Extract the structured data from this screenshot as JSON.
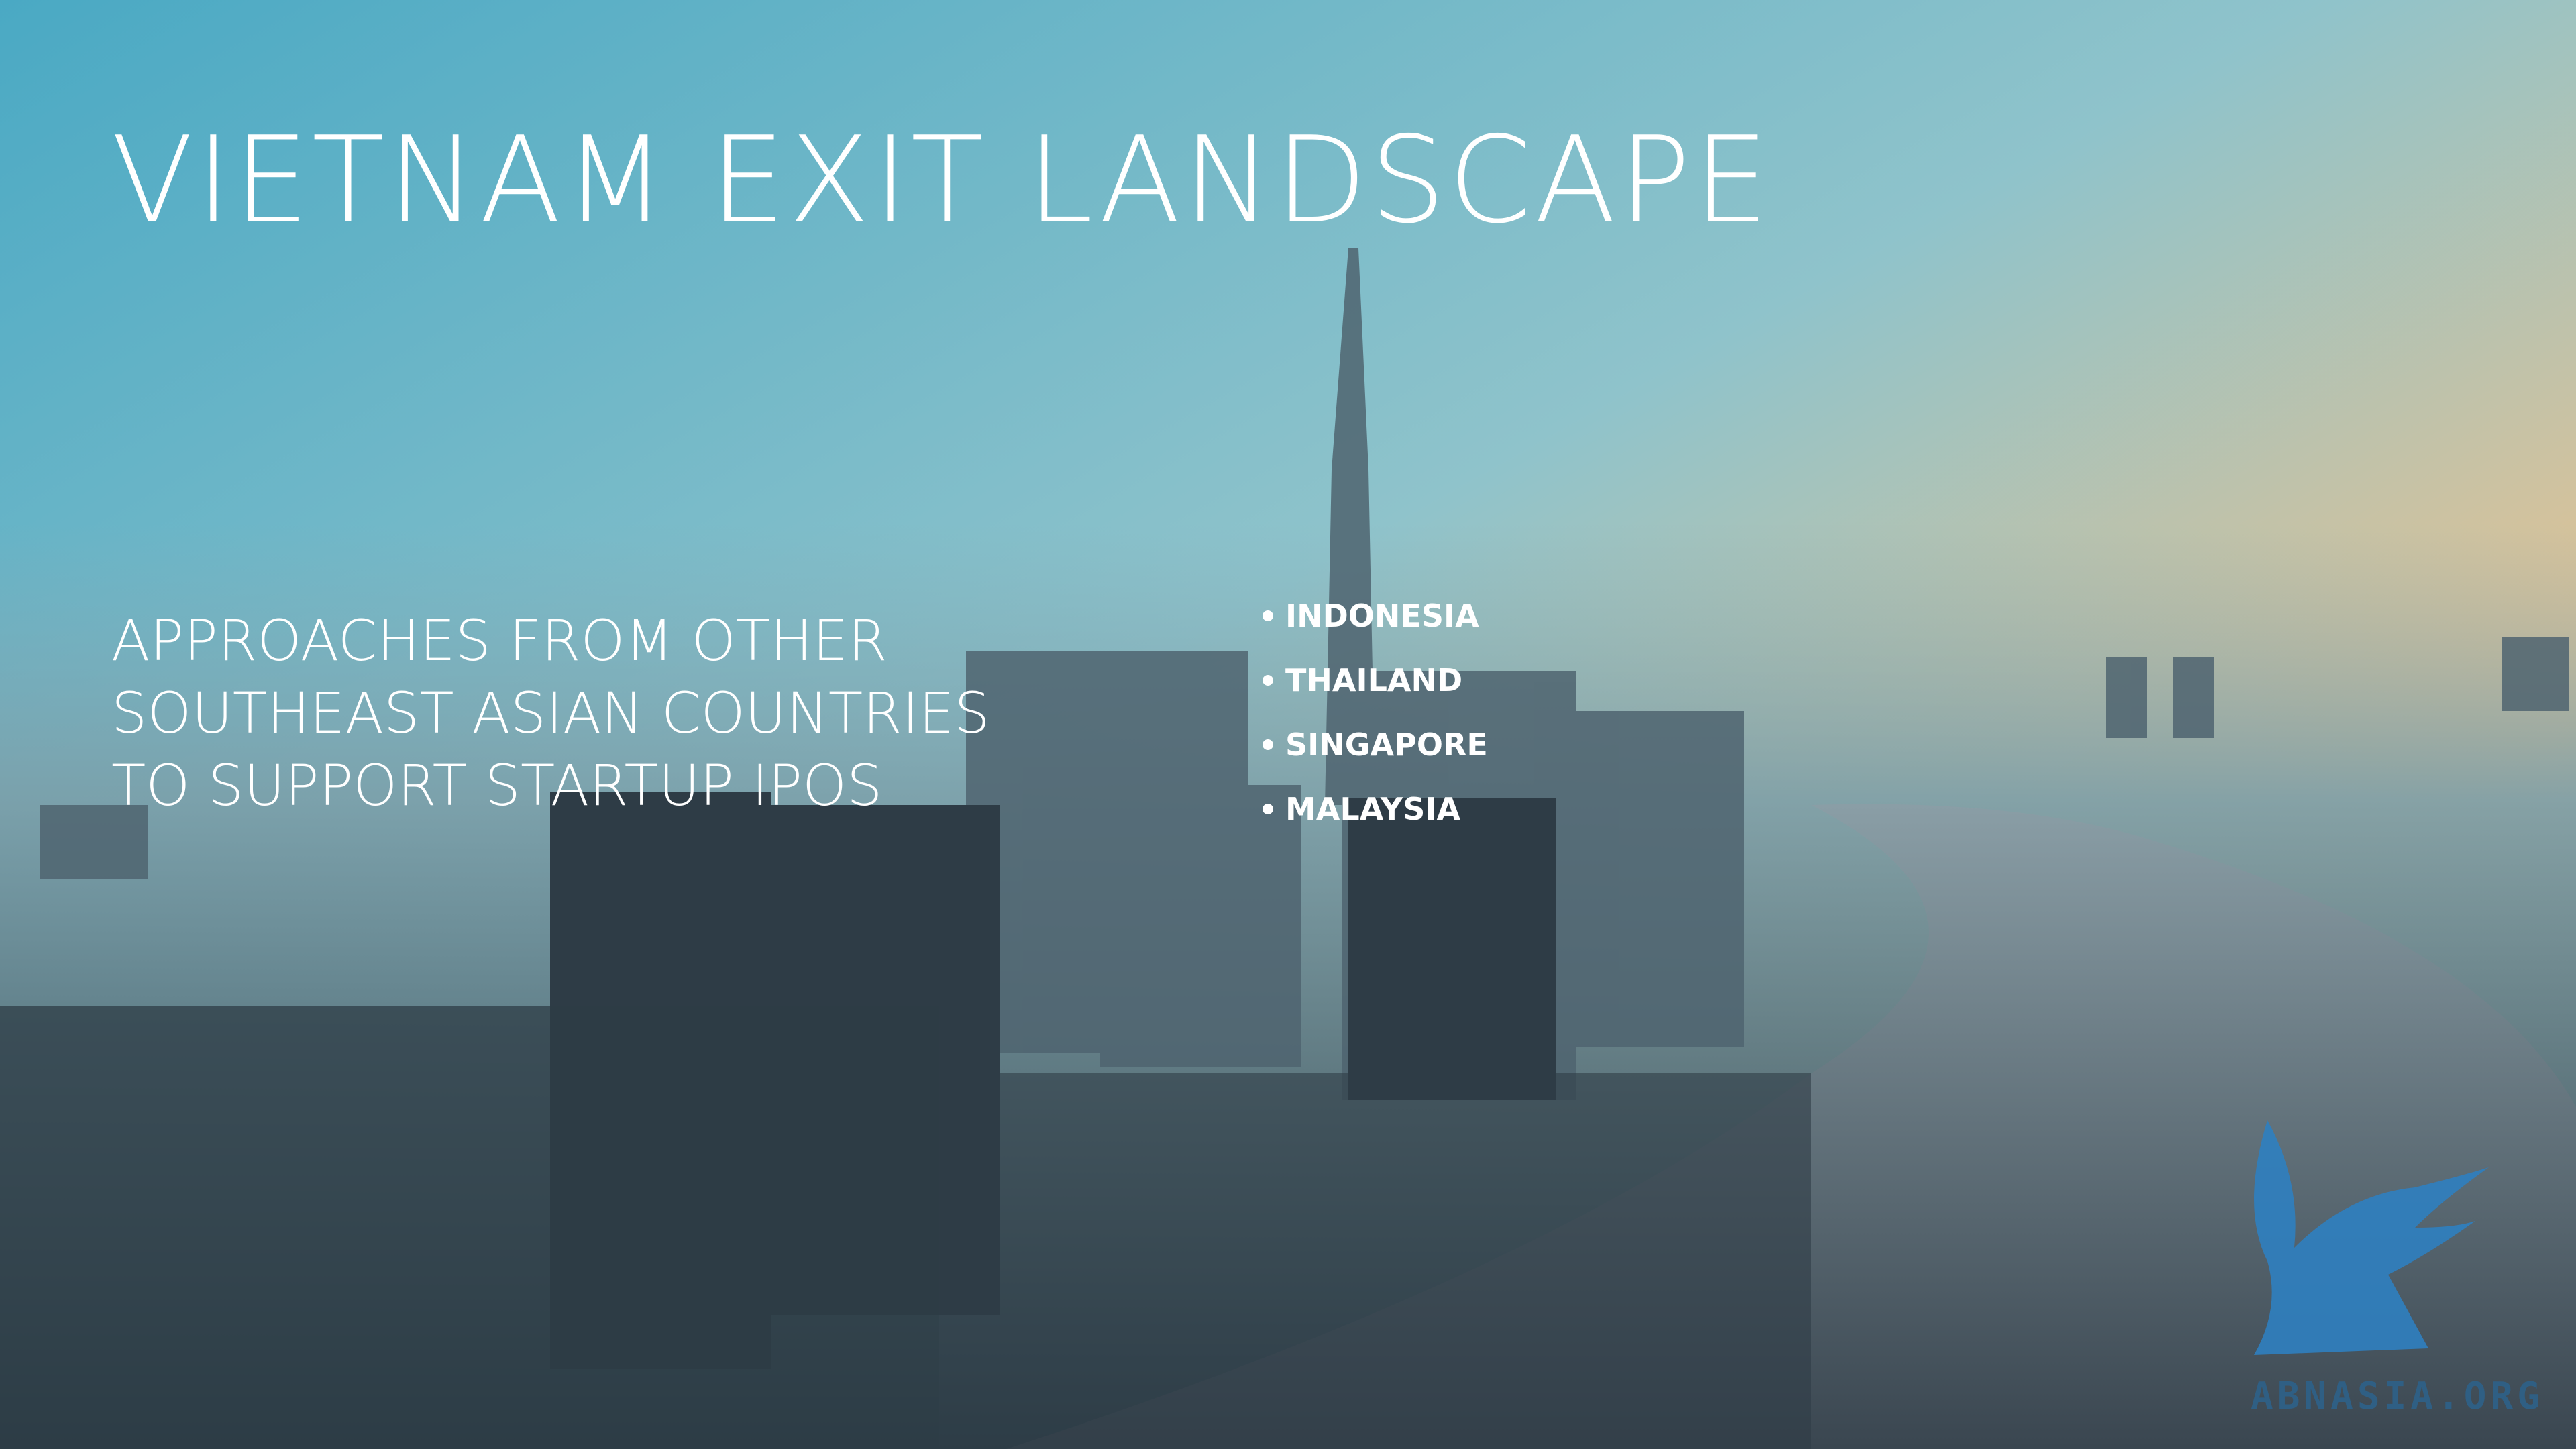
{
  "title": "VIETNAM EXIT LANDSCAPE",
  "subtitle_lines": [
    "APPROACHES FROM OTHER",
    "SOUTHEAST ASIAN COUNTRIES",
    "TO SUPPORT STARTUP IPOS"
  ],
  "bullets": [
    "INDONESIA",
    "THAILAND",
    "SINGAPORE",
    "MALAYSIA"
  ],
  "logo": "ABNASIA.ORG"
}
